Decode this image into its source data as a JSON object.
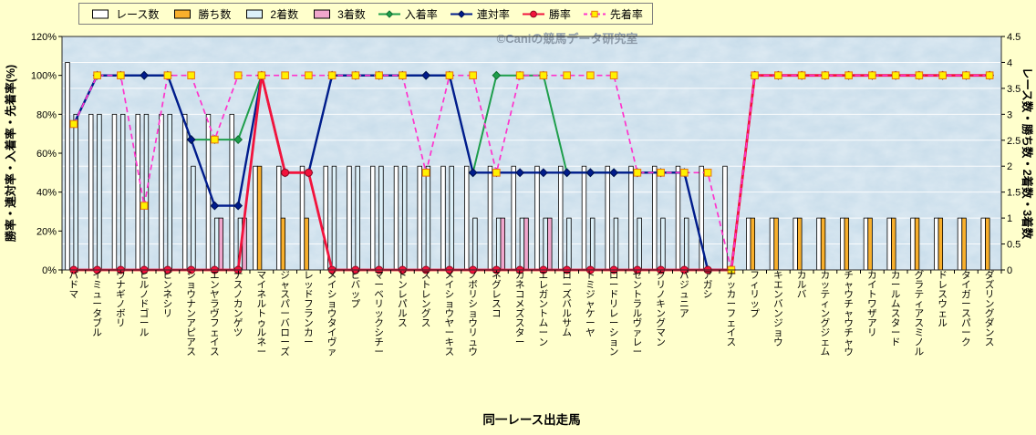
{
  "page": {
    "background": "#FFFFCC"
  },
  "chart_data": {
    "type": "bar+line",
    "title": "",
    "watermark": "©Caniの競馬データ研究室",
    "xlabel": "同一レース出走馬",
    "ylabel_left": "勝率・連対率・入着率・先着率(%)",
    "ylabel_right": "レース数・勝ち数・2着数・3着数",
    "axis_left": {
      "min": 0,
      "max": 120,
      "step": 20,
      "suffix": "%"
    },
    "axis_right": {
      "min": 0,
      "max": 4.5,
      "step": 0.5
    },
    "grid": true,
    "legend_position": "top",
    "plot_bg": "#C7DCEA",
    "categories": [
      "パドマ",
      "イミュータブル",
      "ウナギノボリ",
      "ヒルノドゴール",
      "ピンネシリ",
      "ショウナンアピアス",
      "エンヤラヴフェイス",
      "ナスノカンゲツ",
      "マイネルトゥルネー",
      "ジャスパーバローズ",
      "レッドフランカー",
      "メイショウタイヴァ",
      "ビバップ",
      "マーベリックシチー",
      "ドンレパルス",
      "ストレングス",
      "メイショウヤーキス",
      "ノボリショウリュウ",
      "ネグレスコ",
      "カネコメズスター",
      "エレガントムーン",
      "ローズバルサム",
      "トミジャケーヤ",
      "ロードリレーション",
      "セントラルヴァレー",
      "クリノキングマン",
      "パジュニア",
      "アガシ",
      "ナッカーフェイス",
      "フィリップ",
      "キエンバンジョウ",
      "カルバ",
      "カッティングジェム",
      "チャウチャウチャウ",
      "カイトワザアリ",
      "カールムスタード",
      "グラティアスミノル",
      "ドレスウェル",
      "タイガースパーク",
      "ダズリングダンス"
    ],
    "bar_series": [
      {
        "key": "races",
        "name": "レース数",
        "color": "#FFFFFF",
        "values": [
          4,
          3,
          3,
          3,
          3,
          3,
          3,
          3,
          2,
          2,
          2,
          2,
          2,
          2,
          2,
          2,
          2,
          2,
          2,
          2,
          2,
          2,
          2,
          2,
          2,
          2,
          2,
          2,
          2,
          1,
          1,
          1,
          1,
          1,
          1,
          1,
          1,
          1,
          1,
          1
        ]
      },
      {
        "key": "wins",
        "name": "勝ち数",
        "color": "#F8AF2C",
        "values": [
          0,
          0,
          0,
          0,
          0,
          0,
          0,
          0,
          2,
          1,
          1,
          0,
          0,
          0,
          0,
          0,
          0,
          0,
          0,
          0,
          0,
          0,
          0,
          0,
          0,
          0,
          0,
          0,
          0,
          1,
          1,
          1,
          1,
          1,
          1,
          1,
          1,
          1,
          1,
          1
        ]
      },
      {
        "key": "seconds",
        "name": "2着数",
        "color": "#DCF0F8",
        "values": [
          3,
          3,
          3,
          3,
          3,
          2,
          1,
          1,
          0,
          0,
          0,
          2,
          2,
          2,
          2,
          2,
          2,
          1,
          1,
          1,
          1,
          1,
          1,
          1,
          1,
          1,
          1,
          0,
          0,
          0,
          0,
          0,
          0,
          0,
          0,
          0,
          0,
          0,
          0,
          0
        ]
      },
      {
        "key": "thirds",
        "name": "3着数",
        "color": "#F0A6CC",
        "values": [
          0,
          0,
          0,
          0,
          0,
          0,
          1,
          1,
          0,
          0,
          0,
          0,
          0,
          0,
          0,
          0,
          0,
          0,
          1,
          1,
          1,
          0,
          0,
          0,
          0,
          0,
          0,
          0,
          0,
          0,
          0,
          0,
          0,
          0,
          0,
          0,
          0,
          0,
          0,
          0
        ]
      }
    ],
    "line_series": [
      {
        "key": "place-rate",
        "name": "入着率",
        "color": "#1E9E4B",
        "marker": "diamond",
        "marker_fill": "#1E9E4B",
        "marker_stroke": "#0E6E30",
        "dash": false,
        "values": [
          75,
          100,
          100,
          100,
          100,
          67,
          67,
          67,
          100,
          50,
          50,
          100,
          100,
          100,
          100,
          100,
          100,
          50,
          100,
          100,
          100,
          50,
          50,
          50,
          50,
          50,
          50,
          0,
          0,
          100,
          100,
          100,
          100,
          100,
          100,
          100,
          100,
          100,
          100,
          100
        ]
      },
      {
        "key": "quinella-rate",
        "name": "連対率",
        "color": "#001C8C",
        "marker": "diamond",
        "marker_fill": "#001C8C",
        "marker_stroke": "#000F54",
        "dash": false,
        "values": [
          75,
          100,
          100,
          100,
          100,
          67,
          33,
          33,
          100,
          50,
          50,
          100,
          100,
          100,
          100,
          100,
          100,
          50,
          50,
          50,
          50,
          50,
          50,
          50,
          50,
          50,
          50,
          0,
          0,
          100,
          100,
          100,
          100,
          100,
          100,
          100,
          100,
          100,
          100,
          100
        ]
      },
      {
        "key": "win-rate",
        "name": "勝率",
        "color": "#F2133C",
        "marker": "circle",
        "marker_fill": "#F2133C",
        "marker_stroke": "#8F0A22",
        "dash": false,
        "values": [
          0,
          0,
          0,
          0,
          0,
          0,
          0,
          0,
          100,
          50,
          50,
          0,
          0,
          0,
          0,
          0,
          0,
          0,
          0,
          0,
          0,
          0,
          0,
          0,
          0,
          0,
          0,
          0,
          0,
          100,
          100,
          100,
          100,
          100,
          100,
          100,
          100,
          100,
          100,
          100
        ]
      },
      {
        "key": "finish-ahead-rate",
        "name": "先着率",
        "color": "#FF33CC",
        "marker": "square",
        "marker_fill": "#FFF100",
        "marker_stroke": "#E87511",
        "dash": true,
        "values": [
          75,
          100,
          100,
          33,
          100,
          100,
          67,
          100,
          100,
          100,
          100,
          100,
          100,
          100,
          100,
          50,
          100,
          100,
          50,
          100,
          100,
          100,
          100,
          100,
          50,
          50,
          50,
          50,
          0,
          100,
          100,
          100,
          100,
          100,
          100,
          100,
          100,
          100,
          100,
          100
        ]
      }
    ]
  }
}
